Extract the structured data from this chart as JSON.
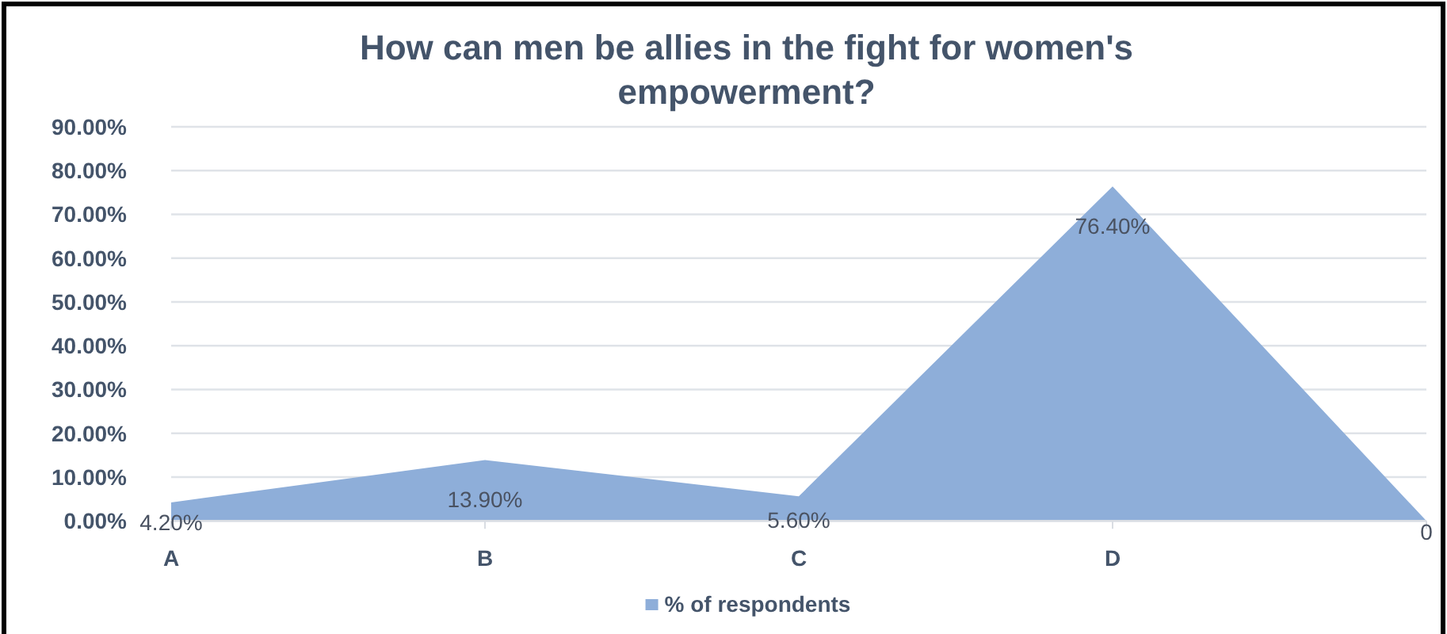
{
  "chart_data": {
    "type": "area",
    "title": "How can men be allies in the fight for women's empowerment?",
    "categories": [
      "A",
      "B",
      "C",
      "D",
      null
    ],
    "series": [
      {
        "name": "% of respondents",
        "color": "#8eaed9",
        "values": [
          4.2,
          13.9,
          5.6,
          76.4,
          0
        ],
        "value_labels": [
          "4.20%",
          "13.90%",
          "5.60%",
          "76.40%",
          "0"
        ]
      }
    ],
    "ylim": [
      0,
      90
    ],
    "yticks": [
      {
        "value": 0,
        "label": "0.00%"
      },
      {
        "value": 10,
        "label": "10.00%"
      },
      {
        "value": 20,
        "label": "20.00%"
      },
      {
        "value": 30,
        "label": "30.00%"
      },
      {
        "value": 40,
        "label": "40.00%"
      },
      {
        "value": 50,
        "label": "50.00%"
      },
      {
        "value": 60,
        "label": "60.00%"
      },
      {
        "value": 70,
        "label": "70.00%"
      },
      {
        "value": 80,
        "label": "80.00%"
      },
      {
        "value": 90,
        "label": "90.00%"
      }
    ],
    "grid": "y",
    "legend": "bottom"
  }
}
